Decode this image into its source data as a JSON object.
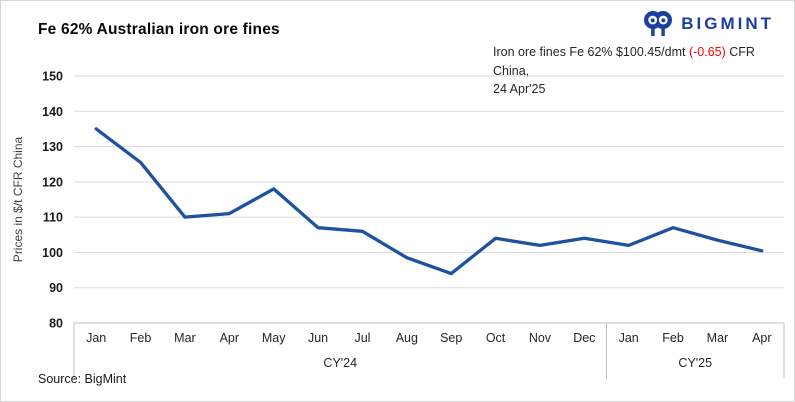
{
  "title": "Fe 62% Australian iron ore fines",
  "logo": {
    "text": "BIGMINT"
  },
  "annotation": {
    "line1_before": "Iron ore fines Fe 62% $100.45/dmt ",
    "line1_change": "(-0.65)",
    "line1_after": " CFR China,",
    "line2": "24 Apr'25"
  },
  "source": "Source: BigMint",
  "colors": {
    "line": "#1e51a2",
    "logo": "#1c3e9e",
    "change_negative": "#ff0000",
    "gridline": "#dadada",
    "axis": "#c0c0c0",
    "tick_label": "#1a1a1a",
    "month_label": "#262626",
    "axis_title": "#404040"
  },
  "chart_data": {
    "type": "line",
    "series_name": "Fe 62% Australian iron ore fines",
    "categories": [
      "Jan",
      "Feb",
      "Mar",
      "Apr",
      "May",
      "Jun",
      "Jul",
      "Aug",
      "Sep",
      "Oct",
      "Nov",
      "Dec",
      "Jan",
      "Feb",
      "Mar",
      "Apr"
    ],
    "category_groups": [
      {
        "label": "CY'24",
        "span": 12
      },
      {
        "label": "CY'25",
        "span": 4
      }
    ],
    "values": [
      135,
      125.5,
      110,
      111,
      118,
      107,
      106,
      98.5,
      94,
      104,
      102,
      104,
      102,
      107,
      103.5,
      100.45
    ],
    "last_point_label": "100.45 on 24 Apr'25",
    "xlabel": "",
    "ylabel": "Prices in $/t CFR China",
    "ylim": [
      80,
      150
    ],
    "ytick_interval": 10,
    "grid": true,
    "legend": false
  }
}
